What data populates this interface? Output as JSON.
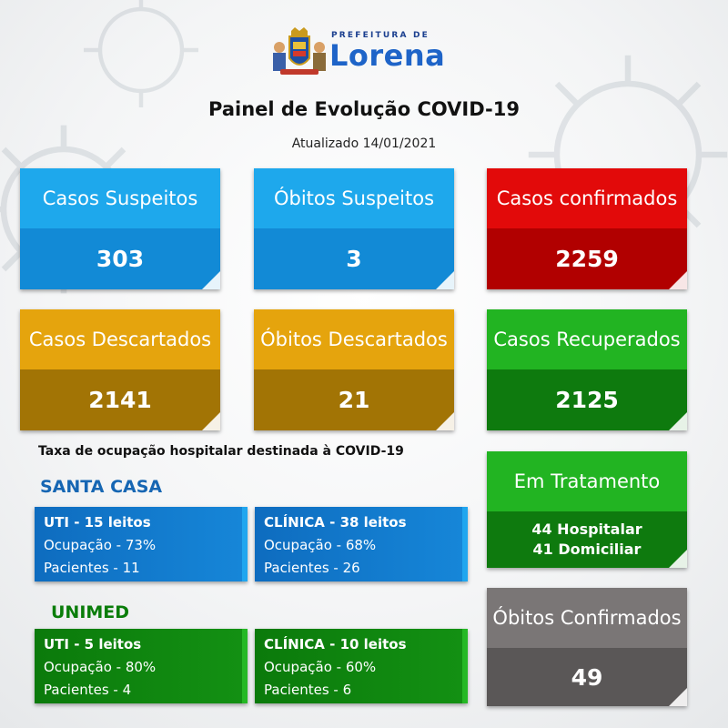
{
  "header": {
    "logo_small": "PREFEITURA DE",
    "logo_big": "Lorena",
    "title": "Painel de Evolução COVID-19",
    "updated": "Atualizado 14/01/2021"
  },
  "stats": {
    "casos_suspeitos": {
      "label": "Casos Suspeitos",
      "value": "303"
    },
    "obitos_suspeitos": {
      "label": "Óbitos Suspeitos",
      "value": "3"
    },
    "casos_confirmados": {
      "label": "Casos confirmados",
      "value": "2259"
    },
    "casos_descartados": {
      "label": "Casos Descartados",
      "value": "2141"
    },
    "obitos_descartados": {
      "label": "Óbitos Descartados",
      "value": "21"
    },
    "casos_recuperados": {
      "label": "Casos Recuperados",
      "value": "2125"
    },
    "em_tratamento": {
      "label": "Em Tratamento",
      "hospitalar": "44 Hospitalar",
      "domiciliar": "41 Domiciliar"
    },
    "obitos_confirmados": {
      "label": "Óbitos Confirmados",
      "value": "49"
    }
  },
  "occupancy": {
    "title": "Taxa de ocupação hospitalar destinada à COVID-19",
    "santa_casa": {
      "name": "SANTA CASA",
      "uti": {
        "beds": "UTI - 15 leitos",
        "occupancy": "Ocupação - 73%",
        "patients": "Pacientes - 11"
      },
      "clinica": {
        "beds": "CLÍNICA - 38 leitos",
        "occupancy": "Ocupação - 68%",
        "patients": "Pacientes - 26"
      }
    },
    "unimed": {
      "name": "UNIMED",
      "uti": {
        "beds": "UTI - 5 leitos",
        "occupancy": "Ocupação - 80%",
        "patients": "Pacientes - 4"
      },
      "clinica": {
        "beds": "CLÍNICA - 10 leitos",
        "occupancy": "Ocupação - 60%",
        "patients": "Pacientes - 6"
      }
    }
  },
  "colors": {
    "blue": "#1ea8ec",
    "red": "#e20a0a",
    "gold": "#e5a40d",
    "green": "#22b422",
    "grey": "#7a7676",
    "hosp_blue": "#1666b3",
    "hosp_green": "#0a7d0a"
  }
}
